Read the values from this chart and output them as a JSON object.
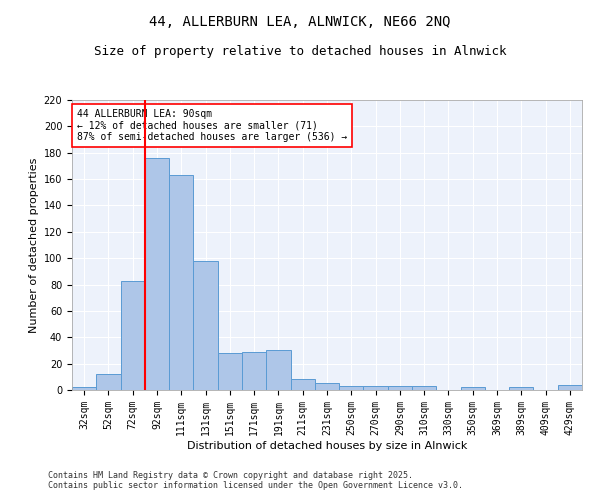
{
  "title1": "44, ALLERBURN LEA, ALNWICK, NE66 2NQ",
  "title2": "Size of property relative to detached houses in Alnwick",
  "xlabel": "Distribution of detached houses by size in Alnwick",
  "ylabel": "Number of detached properties",
  "categories": [
    "32sqm",
    "52sqm",
    "72sqm",
    "92sqm",
    "111sqm",
    "131sqm",
    "151sqm",
    "171sqm",
    "191sqm",
    "211sqm",
    "231sqm",
    "250sqm",
    "270sqm",
    "290sqm",
    "310sqm",
    "330sqm",
    "350sqm",
    "369sqm",
    "389sqm",
    "409sqm",
    "429sqm"
  ],
  "values": [
    2,
    12,
    83,
    176,
    163,
    98,
    28,
    29,
    30,
    8,
    5,
    3,
    3,
    3,
    3,
    0,
    2,
    0,
    2,
    0,
    4
  ],
  "bar_color": "#aec6e8",
  "bar_edge_color": "#5a9bd4",
  "vline_color": "red",
  "vline_x_index": 3,
  "annotation_text": "44 ALLERBURN LEA: 90sqm\n← 12% of detached houses are smaller (71)\n87% of semi-detached houses are larger (536) →",
  "annotation_box_color": "white",
  "annotation_box_edge": "red",
  "ylim": [
    0,
    220
  ],
  "yticks": [
    0,
    20,
    40,
    60,
    80,
    100,
    120,
    140,
    160,
    180,
    200,
    220
  ],
  "background_color": "#edf2fb",
  "grid_color": "white",
  "footer": "Contains HM Land Registry data © Crown copyright and database right 2025.\nContains public sector information licensed under the Open Government Licence v3.0.",
  "title1_fontsize": 10,
  "title2_fontsize": 9,
  "tick_fontsize": 7,
  "ylabel_fontsize": 8,
  "xlabel_fontsize": 8,
  "annotation_fontsize": 7,
  "footer_fontsize": 6
}
